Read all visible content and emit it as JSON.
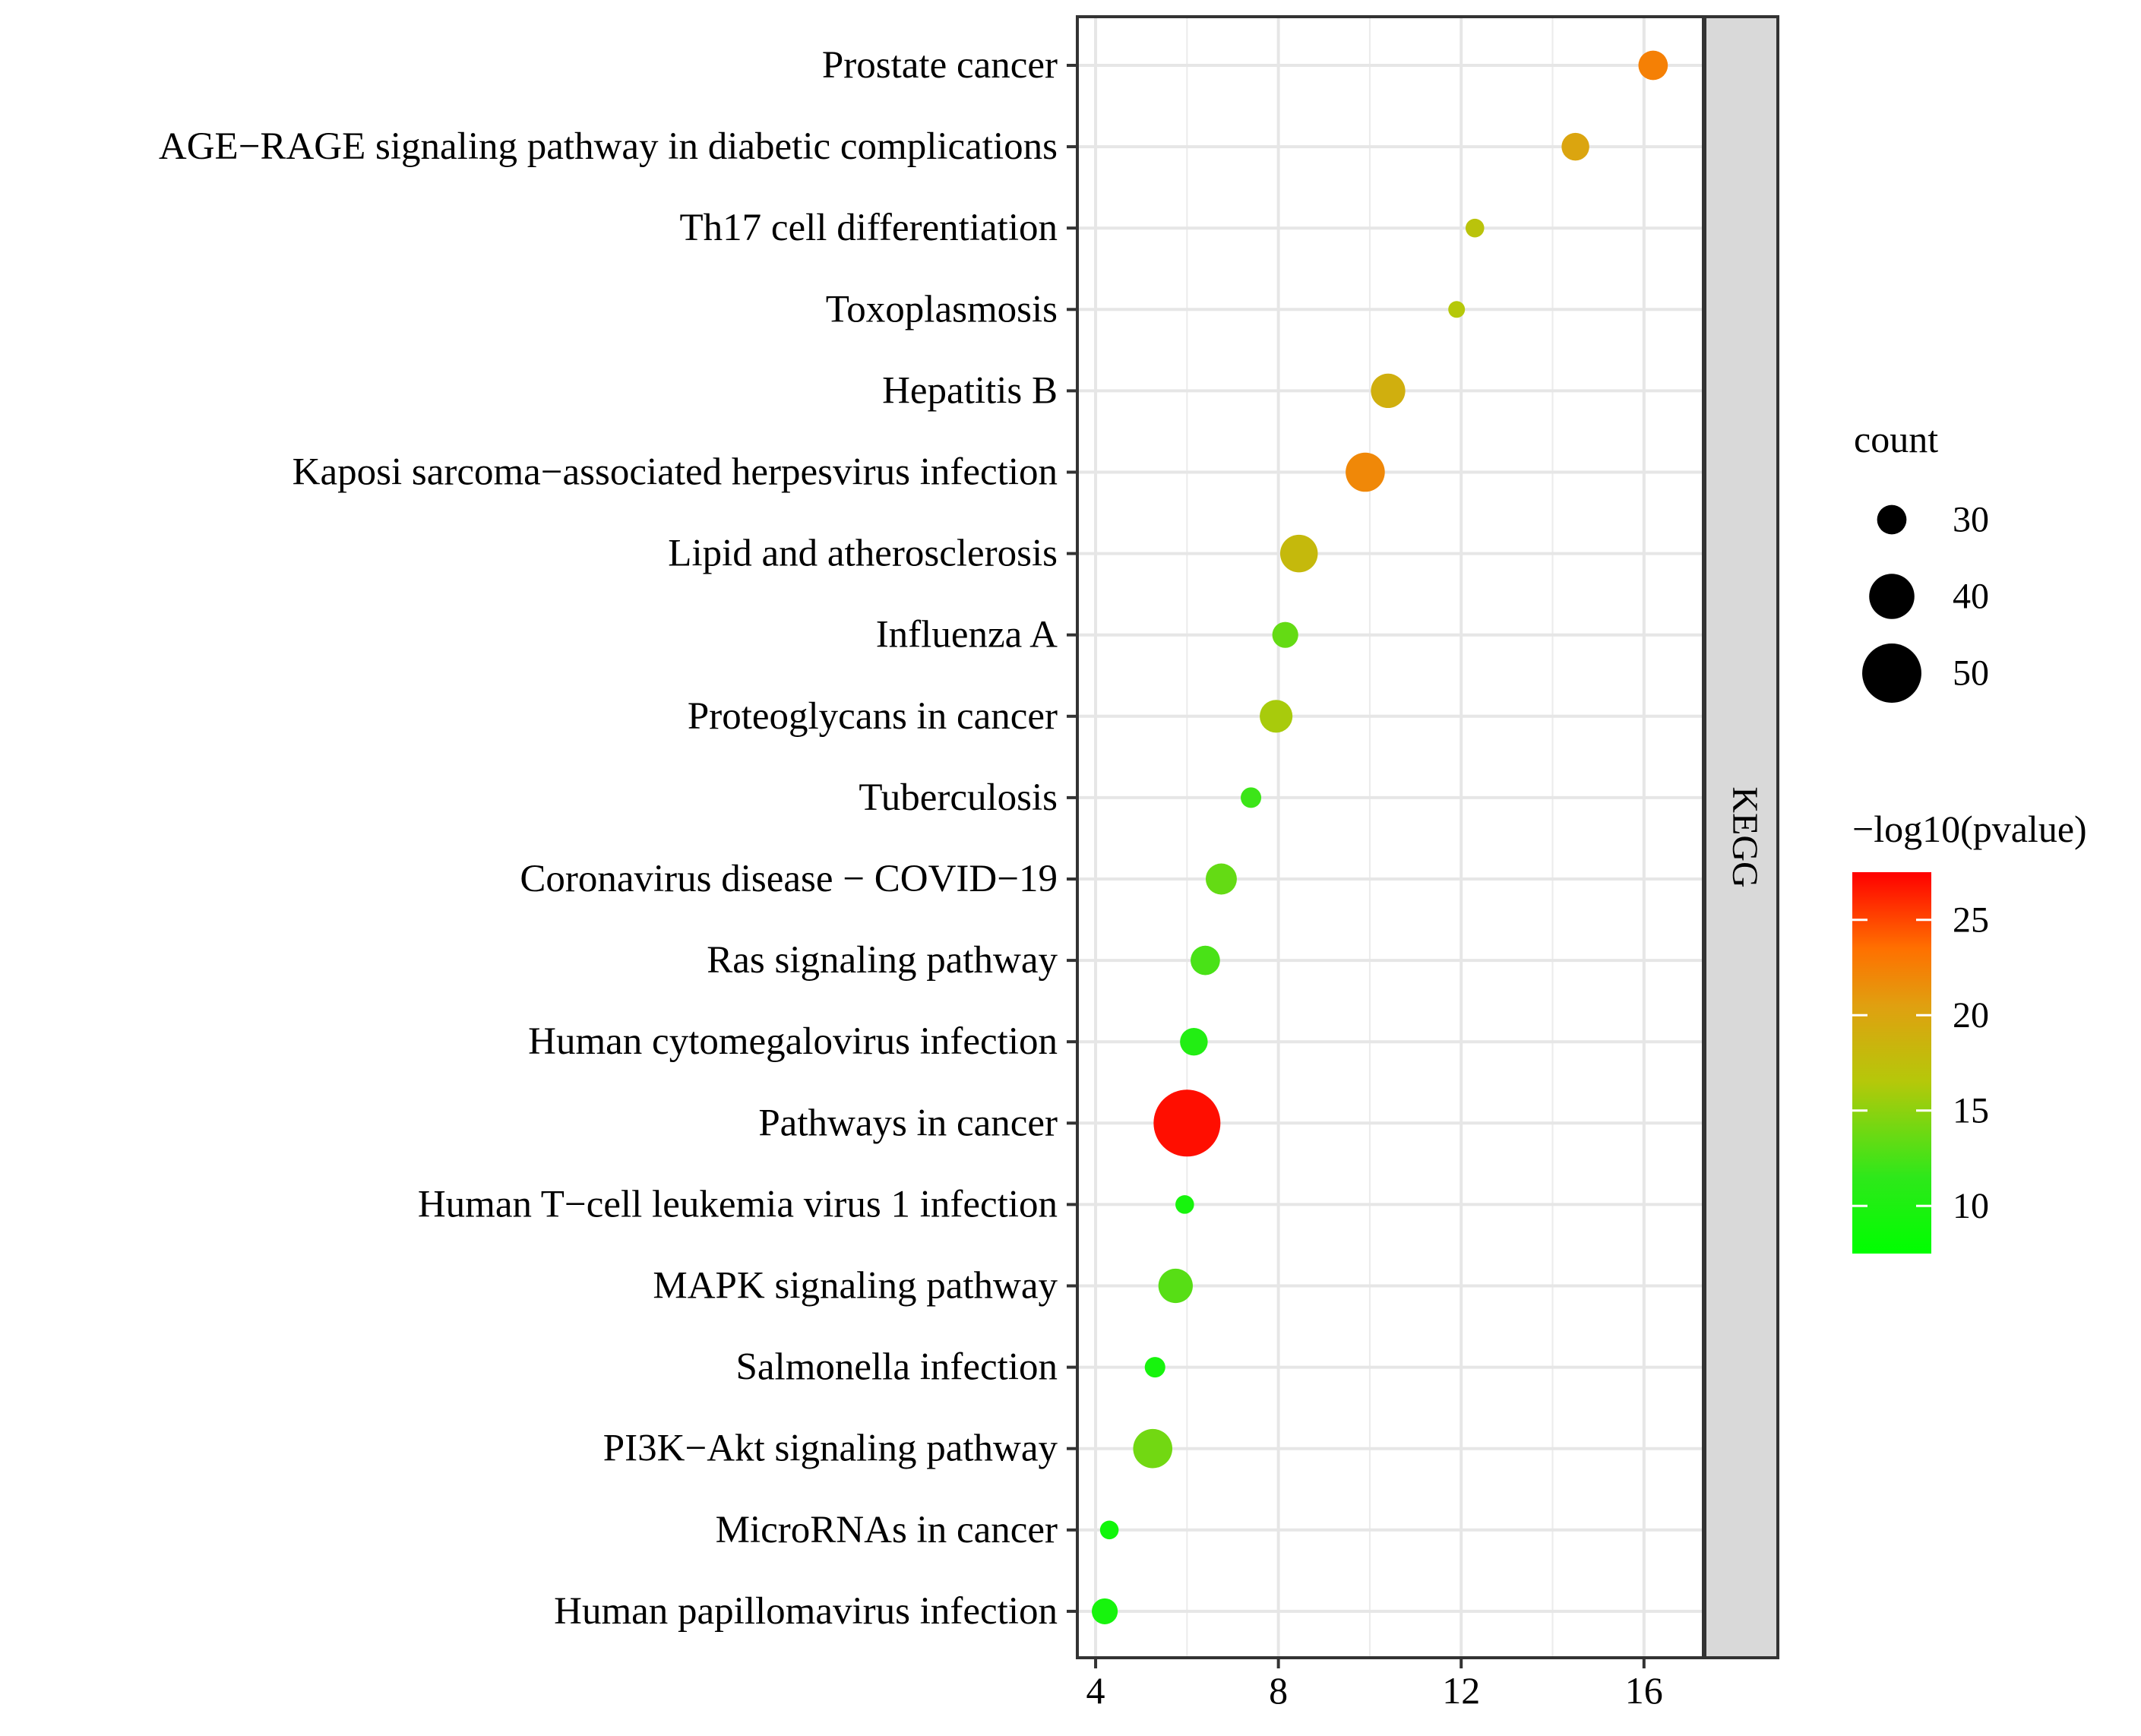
{
  "chart_data": {
    "type": "scatter",
    "subtype": "dot-plot",
    "title": "",
    "xlabel": "",
    "ylabel": "",
    "xlim": [
      3.6,
      17.3
    ],
    "xticks": [
      4,
      8,
      12,
      16
    ],
    "grid": true,
    "facet_label": "KEGG",
    "categories": [
      "Prostate cancer",
      "AGE−RAGE signaling pathway in diabetic complications",
      "Th17 cell differentiation",
      "Toxoplasmosis",
      "Hepatitis B",
      "Kaposi sarcoma−associated herpesvirus infection",
      "Lipid and atherosclerosis",
      "Influenza A",
      "Proteoglycans in cancer",
      "Tuberculosis",
      "Coronavirus disease − COVID−19",
      "Ras signaling pathway",
      "Human cytomegalovirus infection",
      "Pathways in cancer",
      "Human T−cell leukemia virus 1 infection",
      "MAPK signaling pathway",
      "Salmonella infection",
      "PI3K−Akt signaling pathway",
      "MicroRNAs in cancer",
      "Human papillomavirus infection"
    ],
    "x": [
      16.2,
      14.5,
      12.3,
      11.9,
      10.4,
      9.9,
      8.45,
      8.15,
      7.95,
      7.4,
      6.75,
      6.4,
      6.15,
      6.0,
      5.95,
      5.75,
      5.3,
      5.25,
      4.3,
      4.2
    ],
    "count": [
      30,
      29,
      24,
      23,
      33,
      36,
      35,
      28,
      32,
      25,
      31,
      30,
      29,
      56,
      24,
      33,
      25,
      36,
      24,
      28
    ],
    "neg_log10_pvalue": [
      22.5,
      20.0,
      17.0,
      16.5,
      19.0,
      22.0,
      18.0,
      13.5,
      16.0,
      12.0,
      13.5,
      12.5,
      10.5,
      27.0,
      9.5,
      13.0,
      9.5,
      14.0,
      9.0,
      9.5
    ],
    "size_legend": {
      "title": "count",
      "values": [
        30,
        40,
        50
      ]
    },
    "color_legend": {
      "title": "−log10(pvalue)",
      "ticks": [
        10,
        15,
        20,
        25
      ],
      "range": [
        7.5,
        27.5
      ],
      "low_color": "#00ff00",
      "mid_color": "#d4a017",
      "high_color": "#ff0000"
    }
  }
}
